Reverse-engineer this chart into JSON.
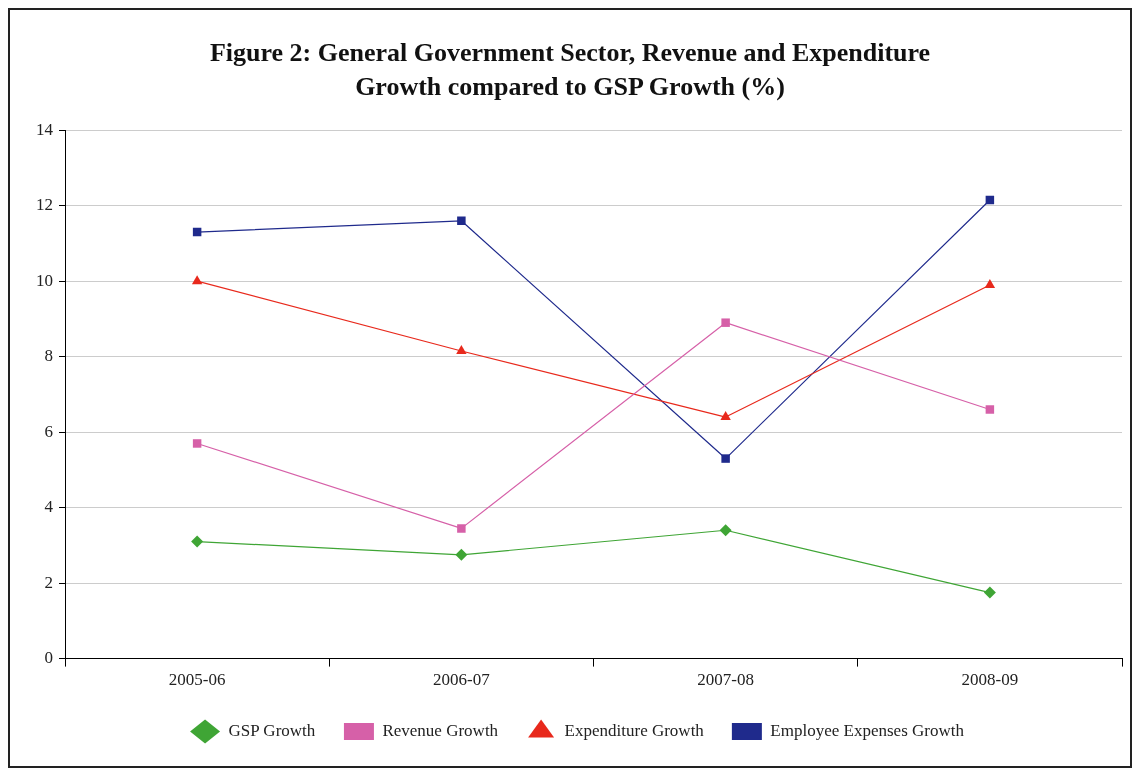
{
  "chart_data": {
    "type": "line",
    "title": "Figure 2: General Government Sector, Revenue and Expenditure Growth compared to GSP Growth (%)",
    "categories": [
      "2005-06",
      "2006-07",
      "2007-08",
      "2008-09"
    ],
    "series": [
      {
        "name": "GSP Growth",
        "color": "#3fa535",
        "marker": "diamond",
        "values": [
          3.1,
          2.75,
          3.4,
          1.75
        ]
      },
      {
        "name": "Revenue Growth",
        "color": "#d660a8",
        "marker": "square",
        "values": [
          5.7,
          3.45,
          8.9,
          6.6
        ]
      },
      {
        "name": "Expenditure Growth",
        "color": "#e8291c",
        "marker": "triangle",
        "values": [
          10.0,
          8.15,
          6.4,
          9.9
        ]
      },
      {
        "name": "Employee Expenses Growth",
        "color": "#1f2a8c",
        "marker": "square",
        "values": [
          11.3,
          11.6,
          5.3,
          12.15
        ]
      }
    ],
    "ylim": [
      0,
      14
    ],
    "yticks": [
      0,
      2,
      4,
      6,
      8,
      10,
      12,
      14
    ],
    "grid": "y",
    "legend": "bottom",
    "line_style": "solid"
  }
}
